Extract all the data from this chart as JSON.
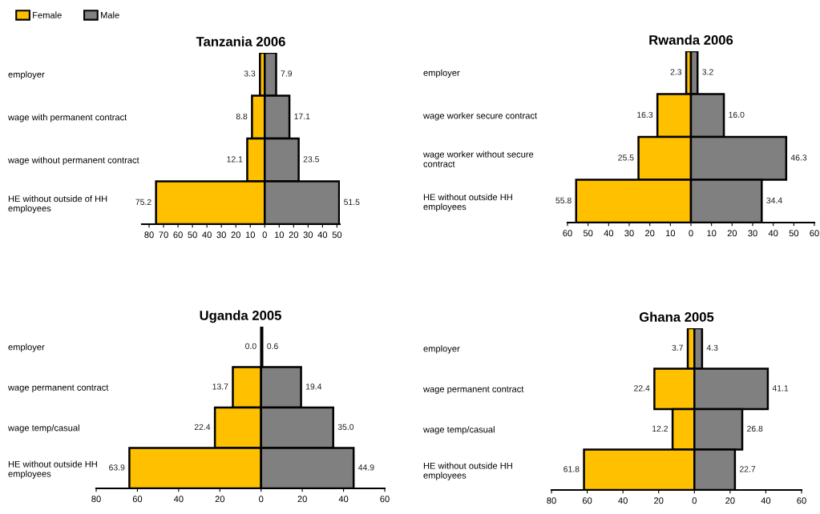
{
  "chart_data": [
    {
      "type": "bar",
      "orientation": "horizontal",
      "title": "Tanzania 2006",
      "legend": "top left",
      "categories": [
        "employer",
        "wage with permanent contract",
        "wage without permanent contract",
        "HE without outside of HH\nemployees"
      ],
      "series": [
        {
          "name": "Female",
          "color": "#ffc000",
          "base": [
            -3.3,
            -8.8,
            -12.1,
            -75.2
          ],
          "values": [
            3.3,
            8.8,
            12.1,
            75.2
          ],
          "value_labels": [
            "3.3",
            "8.8",
            "12.1",
            "75.2"
          ]
        },
        {
          "name": "Male",
          "color": "#808080",
          "values": [
            7.9,
            17.1,
            23.5,
            51.5
          ],
          "value_labels": [
            "7.9",
            "17.1",
            "23.5",
            "51.5"
          ]
        }
      ],
      "xlim": [
        -85,
        52
      ],
      "xticks": [
        {
          "value": -80,
          "label": "80"
        },
        {
          "value": -70,
          "label": "70"
        },
        {
          "value": -60,
          "label": "60"
        },
        {
          "value": -50,
          "label": "50"
        },
        {
          "value": -40,
          "label": "40"
        },
        {
          "value": -30,
          "label": "30"
        },
        {
          "value": -20,
          "label": "20"
        },
        {
          "value": -10,
          "label": "10"
        },
        0,
        10,
        20,
        30,
        40,
        50
      ]
    },
    {
      "type": "bar",
      "orientation": "horizontal",
      "title": "Rwanda 2006",
      "categories": [
        "employer",
        "wage worker secure contract",
        "wage worker without secure\ncontract",
        "HE without outside HH\nemployees"
      ],
      "series": [
        {
          "color": "#ffc000",
          "base": [
            -2.3,
            -16.3,
            -25.5,
            -55.8
          ],
          "values": [
            2.3,
            16.3,
            25.5,
            55.8
          ],
          "value_labels": [
            "2.3",
            "16.3",
            "25.5",
            "55.8"
          ]
        },
        {
          "color": "#808080",
          "values": [
            3.2,
            16.0,
            46.3,
            34.4
          ],
          "value_labels": [
            "3.2",
            "16.0",
            "46.3",
            "34.4"
          ]
        }
      ],
      "xlim": [
        -60,
        60
      ],
      "xticks": [
        {
          "value": -60,
          "label": "60"
        },
        {
          "value": -50,
          "label": "50"
        },
        {
          "value": -40,
          "label": "40"
        },
        {
          "value": -30,
          "label": "30"
        },
        {
          "value": -20,
          "label": "20"
        },
        {
          "value": -10,
          "label": "10"
        },
        0,
        10,
        20,
        30,
        40,
        50,
        60
      ]
    },
    {
      "type": "bar",
      "orientation": "horizontal",
      "title": "Uganda 2005",
      "categories": [
        "employer",
        "wage permanent contract",
        "wage temp/casual",
        "HE without outside HH\nemployees"
      ],
      "series": [
        {
          "color": "#ffc000",
          "base": [
            null,
            -13.7,
            -22.4,
            -63.9
          ],
          "values": [
            0.0,
            13.7,
            22.4,
            63.9
          ],
          "value_labels": [
            "0.0",
            "13.7",
            "22.4",
            "63.9"
          ]
        },
        {
          "color": "#808080",
          "values": [
            0.6,
            19.4,
            35.0,
            44.9
          ],
          "value_labels": [
            "0.6",
            "19.4",
            "35.0",
            "44.9"
          ]
        }
      ],
      "xlim": [
        -80,
        60
      ],
      "xticks": [
        {
          "value": -80,
          "label": "80"
        },
        {
          "value": -60,
          "label": "60"
        },
        {
          "value": -40,
          "label": "40"
        },
        {
          "value": -20,
          "label": "20"
        },
        0,
        20,
        40,
        60
      ]
    },
    {
      "type": "bar",
      "orientation": "horizontal",
      "title": "Ghana 2005",
      "categories": [
        "employer",
        "wage permanent contract",
        "wage temp/casual",
        "HE without outside HH\nemployees"
      ],
      "series": [
        {
          "color": "#ffc000",
          "base": [
            -3.7,
            -22.4,
            -12.2,
            -61.8
          ],
          "values": [
            3.7,
            22.4,
            12.2,
            61.8
          ],
          "value_labels": [
            "3.7",
            "22.4",
            "12.2",
            "61.8"
          ]
        },
        {
          "color": "#808080",
          "values": [
            4.3,
            41.1,
            26.8,
            22.7
          ],
          "value_labels": [
            "4.3",
            "41.1",
            "26.8",
            "22.7"
          ]
        }
      ],
      "xlim": [
        -80,
        60
      ],
      "xticks": [
        {
          "value": -80,
          "label": "80"
        },
        {
          "value": -60,
          "label": "60"
        },
        {
          "value": -40,
          "label": "40"
        },
        {
          "value": -20,
          "label": "20"
        },
        0,
        20,
        40,
        60
      ]
    }
  ]
}
